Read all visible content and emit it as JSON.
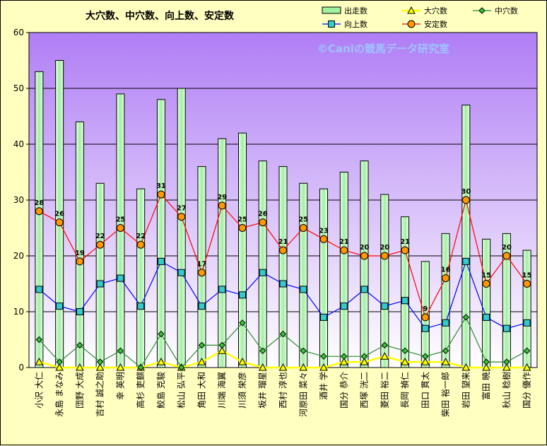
{
  "chart_data": {
    "type": "bar",
    "title": "大穴数、中穴数、向上数、安定数",
    "watermark": "©Caniの競馬データ研究室",
    "ylim": [
      0,
      60
    ],
    "yticks": [
      0,
      10,
      20,
      30,
      40,
      50,
      60
    ],
    "grid": true,
    "legend_position": "top-right",
    "categories": [
      "小沢 大仁",
      "永島 まなみ",
      "団野 大成",
      "吉村 誠之助",
      "幸 英明",
      "高杉 吏麒",
      "鮫島 克駿",
      "松山 弘平",
      "角田 大和",
      "川端 海翼",
      "川須 栄彦",
      "坂井 瑠星",
      "西村 淳也",
      "河原田 菜々",
      "酒井 学",
      "国分 恭介",
      "西塚 洸二",
      "菱田 裕二",
      "長岡 禎仁",
      "田口 貫太",
      "柴田 裕一郎",
      "岩田 望来",
      "富田 暁",
      "秋山 稔樹",
      "国分 優作"
    ],
    "series": [
      {
        "name": "出走数",
        "kind": "bar",
        "color": "#b6f5b6",
        "values": [
          53,
          55,
          44,
          33,
          49,
          32,
          48,
          50,
          36,
          41,
          42,
          37,
          36,
          33,
          32,
          35,
          37,
          31,
          27,
          19,
          24,
          47,
          23,
          24,
          21
        ]
      },
      {
        "name": "大穴数",
        "kind": "line",
        "color": "#ffff00",
        "values": [
          1,
          0,
          0,
          0,
          0,
          0,
          1,
          0,
          1,
          3,
          1,
          0,
          0,
          0,
          0,
          1,
          1,
          2,
          1,
          1,
          1,
          0,
          0,
          0,
          0
        ]
      },
      {
        "name": "中穴数",
        "kind": "line",
        "color": "#2e8b2e",
        "values": [
          5,
          1,
          4,
          1,
          3,
          0,
          6,
          0,
          4,
          4,
          8,
          3,
          6,
          3,
          2,
          2,
          2,
          4,
          3,
          2,
          3,
          9,
          1,
          1,
          3
        ]
      },
      {
        "name": "向上数",
        "kind": "line",
        "color": "#0000ff",
        "values": [
          14,
          11,
          10,
          15,
          16,
          11,
          19,
          17,
          11,
          14,
          13,
          17,
          15,
          14,
          9,
          11,
          14,
          11,
          12,
          7,
          8,
          19,
          9,
          7,
          8
        ]
      },
      {
        "name": "安定数",
        "kind": "line",
        "color": "#ff0000",
        "values": [
          28,
          26,
          19,
          22,
          25,
          22,
          31,
          27,
          17,
          29,
          25,
          26,
          21,
          25,
          23,
          21,
          20,
          20,
          21,
          9,
          16,
          30,
          15,
          20,
          15
        ]
      }
    ]
  }
}
